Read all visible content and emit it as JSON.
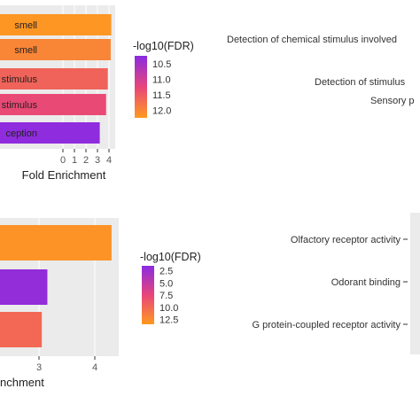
{
  "charts": [
    {
      "id": "top",
      "type": "bar",
      "orientation": "horizontal",
      "categories": [
        "smell",
        "smell",
        "stimulus",
        "stimulus",
        "ception"
      ],
      "values": [
        4.2,
        4.15,
        3.9,
        3.75,
        3.2
      ],
      "neg_log10_fdr": [
        12.2,
        12.0,
        11.6,
        11.3,
        10.3
      ],
      "xlabel": "Fold Enrichment",
      "xlim": [
        0,
        4.25
      ],
      "xticks": [
        "0",
        "1",
        "2",
        "3",
        "4"
      ],
      "grid": true,
      "legend": {
        "title": "-log10(FDR)",
        "ticks": [
          "10.5",
          "11.0",
          "11.5",
          "12.0"
        ],
        "range": [
          10.25,
          12.25
        ],
        "position": "right"
      },
      "right_labels": [
        "Detection of chemical stimulus involved",
        "Detection of stimulus",
        "Sensory p"
      ]
    },
    {
      "id": "bottom",
      "type": "bar",
      "orientation": "horizontal",
      "values": [
        4.3,
        3.15,
        3.05
      ],
      "neg_log10_fdr": [
        13.0,
        2.0,
        10.0
      ],
      "xlabel": "nchment",
      "xlim": [
        0,
        4.6
      ],
      "xticks": [
        "3",
        "4"
      ],
      "grid": true,
      "legend": {
        "title": "-log10(FDR)",
        "ticks": [
          "2.5",
          "5.0",
          "7.5",
          "10.0",
          "12.5"
        ],
        "range": [
          1.5,
          13.5
        ],
        "position": "right"
      },
      "right_labels": [
        "Olfactory receptor activity",
        "Odorant binding",
        "G protein-coupled receptor activity"
      ]
    }
  ],
  "colors": {
    "low": "#8a2be2",
    "mid": "#e8457a",
    "high": "#ff9a1f",
    "panel": "#ebebeb"
  }
}
